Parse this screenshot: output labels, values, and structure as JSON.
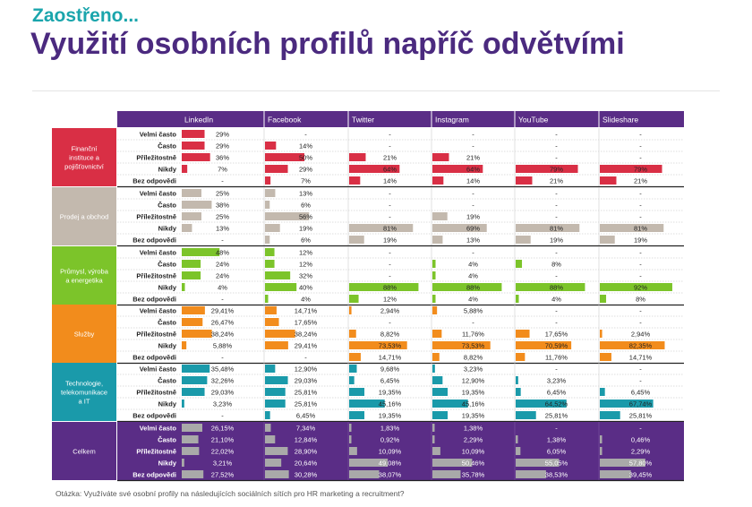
{
  "header": {
    "kicker": "Zaostřeno...",
    "title": "Využití osobních profilů napříč odvětvími"
  },
  "footer": {
    "question": "Otázka: Využíváte své osobní profily na následujících sociálních sítích pro HR marketing a recruitment?"
  },
  "colors": {
    "header_purple": "#5a2d86",
    "total_purple": "#5a2d86",
    "bar_total": "#a9a9a9"
  },
  "chart_data": {
    "type": "table",
    "columns": [
      "LinkedIn",
      "Facebook",
      "Twitter",
      "Instagram",
      "YouTube",
      "Slideshare"
    ],
    "row_labels": [
      "Velmi často",
      "Často",
      "Příležitostně",
      "Nikdy",
      "Bez odpovědi"
    ],
    "groups": [
      {
        "name": "Finanční instituce a pojišťovnictví",
        "color": "#d92f45",
        "values": [
          [
            29,
            null,
            null,
            null,
            null,
            null
          ],
          [
            29,
            14,
            null,
            null,
            null,
            null
          ],
          [
            36,
            50,
            21,
            21,
            null,
            null
          ],
          [
            7,
            29,
            64,
            64,
            79,
            79
          ],
          [
            null,
            7,
            14,
            14,
            21,
            21
          ]
        ],
        "labels": [
          [
            "29%",
            "-",
            "-",
            "-",
            "-",
            "-"
          ],
          [
            "29%",
            "14%",
            "-",
            "-",
            "-",
            "-"
          ],
          [
            "36%",
            "50%",
            "21%",
            "21%",
            "-",
            "-"
          ],
          [
            "7%",
            "29%",
            "64%",
            "64%",
            "79%",
            "79%"
          ],
          [
            "-",
            "7%",
            "14%",
            "14%",
            "21%",
            "21%"
          ]
        ]
      },
      {
        "name": "Prodej a obchod",
        "color": "#c3b9ae",
        "values": [
          [
            25,
            13,
            null,
            null,
            null,
            null
          ],
          [
            38,
            6,
            null,
            null,
            null,
            null
          ],
          [
            25,
            56,
            null,
            19,
            null,
            null
          ],
          [
            13,
            19,
            81,
            69,
            81,
            81
          ],
          [
            null,
            6,
            19,
            13,
            19,
            19
          ]
        ],
        "labels": [
          [
            "25%",
            "13%",
            "-",
            "-",
            "-",
            "-"
          ],
          [
            "38%",
            "6%",
            "-",
            "-",
            "-",
            "-"
          ],
          [
            "25%",
            "56%",
            "-",
            "19%",
            "-",
            "-"
          ],
          [
            "13%",
            "19%",
            "81%",
            "69%",
            "81%",
            "81%"
          ],
          [
            "-",
            "6%",
            "19%",
            "13%",
            "19%",
            "19%"
          ]
        ]
      },
      {
        "name": "Průmysl, výroba a energetika",
        "color": "#7cc42a",
        "values": [
          [
            48,
            12,
            null,
            null,
            null,
            null
          ],
          [
            24,
            12,
            null,
            4,
            8,
            null
          ],
          [
            24,
            32,
            null,
            4,
            null,
            null
          ],
          [
            4,
            40,
            88,
            88,
            88,
            92
          ],
          [
            null,
            4,
            12,
            4,
            4,
            8
          ]
        ],
        "labels": [
          [
            "48%",
            "12%",
            "-",
            "-",
            "-",
            "-"
          ],
          [
            "24%",
            "12%",
            "-",
            "4%",
            "8%",
            "-"
          ],
          [
            "24%",
            "32%",
            "-",
            "4%",
            "-",
            "-"
          ],
          [
            "4%",
            "40%",
            "88%",
            "88%",
            "88%",
            "92%"
          ],
          [
            "-",
            "4%",
            "12%",
            "4%",
            "4%",
            "8%"
          ]
        ]
      },
      {
        "name": "Služby",
        "color": "#f28c1c",
        "values": [
          [
            29.41,
            14.71,
            2.94,
            5.88,
            null,
            null
          ],
          [
            26.47,
            17.65,
            null,
            null,
            null,
            null
          ],
          [
            38.24,
            38.24,
            8.82,
            11.76,
            17.65,
            2.94
          ],
          [
            5.88,
            29.41,
            73.53,
            73.53,
            70.59,
            82.35
          ],
          [
            null,
            null,
            14.71,
            8.82,
            11.76,
            14.71
          ]
        ],
        "labels": [
          [
            "29,41%",
            "14,71%",
            "2,94%",
            "5,88%",
            "-",
            "-"
          ],
          [
            "26,47%",
            "17,65%",
            "-",
            "-",
            "-",
            "-"
          ],
          [
            "38,24%",
            "38,24%",
            "8,82%",
            "11,76%",
            "17,65%",
            "2,94%"
          ],
          [
            "5,88%",
            "29,41%",
            "73,53%",
            "73,53%",
            "70,59%",
            "82,35%"
          ],
          [
            "-",
            "-",
            "14,71%",
            "8,82%",
            "11,76%",
            "14,71%"
          ]
        ]
      },
      {
        "name": "Technologie, telekomunikace a IT",
        "color": "#1a9aaa",
        "values": [
          [
            35.48,
            12.9,
            9.68,
            3.23,
            null,
            null
          ],
          [
            32.26,
            29.03,
            6.45,
            12.9,
            3.23,
            null
          ],
          [
            29.03,
            25.81,
            19.35,
            19.35,
            6.45,
            6.45
          ],
          [
            3.23,
            25.81,
            45.16,
            45.16,
            64.52,
            67.74
          ],
          [
            null,
            6.45,
            19.35,
            19.35,
            25.81,
            25.81
          ]
        ],
        "labels": [
          [
            "35,48%",
            "12,90%",
            "9,68%",
            "3,23%",
            "-",
            "-"
          ],
          [
            "32,26%",
            "29,03%",
            "6,45%",
            "12,90%",
            "3,23%",
            "-"
          ],
          [
            "29,03%",
            "25,81%",
            "19,35%",
            "19,35%",
            "6,45%",
            "6,45%"
          ],
          [
            "3,23%",
            "25,81%",
            "45,16%",
            "45,16%",
            "64,52%",
            "67,74%"
          ],
          [
            "-",
            "6,45%",
            "19,35%",
            "19,35%",
            "25,81%",
            "25,81%"
          ]
        ]
      },
      {
        "name": "Celkem",
        "color": "#5a2d86",
        "values": [
          [
            26.15,
            7.34,
            1.83,
            1.38,
            null,
            null
          ],
          [
            21.1,
            12.84,
            0.92,
            2.29,
            1.38,
            0.46
          ],
          [
            22.02,
            28.9,
            10.09,
            10.09,
            6.05,
            2.29
          ],
          [
            3.21,
            20.64,
            49.08,
            50.46,
            55.05,
            57.8
          ],
          [
            27.52,
            30.28,
            38.07,
            35.78,
            38.53,
            39.45
          ]
        ],
        "labels": [
          [
            "26,15%",
            "7,34%",
            "1,83%",
            "1,38%",
            "-",
            "-"
          ],
          [
            "21,10%",
            "12,84%",
            "0,92%",
            "2,29%",
            "1,38%",
            "0,46%"
          ],
          [
            "22,02%",
            "28,90%",
            "10,09%",
            "10,09%",
            "6,05%",
            "2,29%"
          ],
          [
            "3,21%",
            "20,64%",
            "49,08%",
            "50,46%",
            "55,05%",
            "57,80%"
          ],
          [
            "27,52%",
            "30,28%",
            "38,07%",
            "35,78%",
            "38,53%",
            "39,45%"
          ]
        ]
      }
    ]
  }
}
